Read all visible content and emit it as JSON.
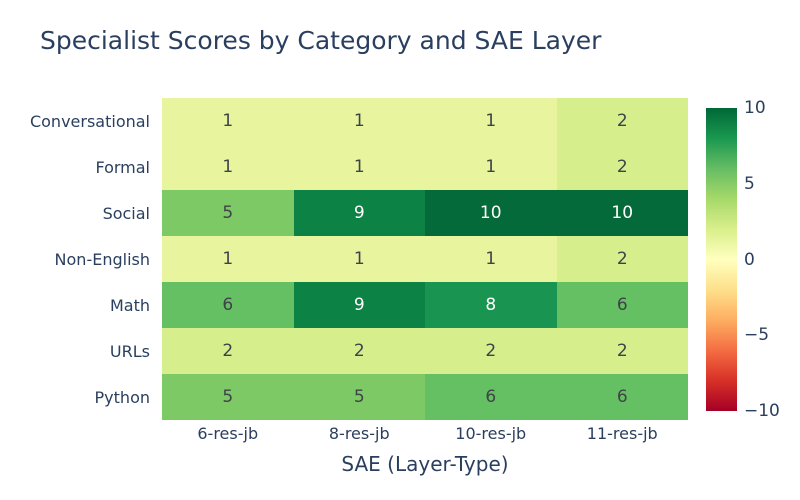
{
  "title": "Specialist Scores by Category and SAE Layer",
  "chart_data": {
    "type": "heatmap",
    "title": "Specialist Scores by Category and SAE Layer",
    "xlabel": "SAE (Layer-Type)",
    "ylabel": "",
    "x_categories": [
      "6-res-jb",
      "8-res-jb",
      "10-res-jb",
      "11-res-jb"
    ],
    "y_categories": [
      "Conversational",
      "Formal",
      "Social",
      "Non-English",
      "Math",
      "URLs",
      "Python"
    ],
    "values": [
      [
        1,
        1,
        1,
        2
      ],
      [
        1,
        1,
        1,
        2
      ],
      [
        5,
        9,
        10,
        10
      ],
      [
        1,
        1,
        1,
        2
      ],
      [
        6,
        9,
        8,
        6
      ],
      [
        2,
        2,
        2,
        2
      ],
      [
        5,
        5,
        6,
        6
      ]
    ],
    "zmin": -10,
    "zmax": 10,
    "colorscale_name": "RdYlGn",
    "colorbar_ticks": [
      {
        "label": "10",
        "value": 10
      },
      {
        "label": "5",
        "value": 5
      },
      {
        "label": "0",
        "value": 0
      },
      {
        "label": "−5",
        "value": -5
      },
      {
        "label": "−10",
        "value": -10
      }
    ],
    "legend_position": "right-colorbar",
    "grid": false
  },
  "style": {
    "label_color": "#2a3f5f",
    "cell_text_dark": "#3e4347",
    "cell_text_light": "#ffffff",
    "light_text_min_value": 8,
    "value_colors": {
      "1": "#e8f59e",
      "2": "#d7ee8c",
      "5": "#7dc965",
      "6": "#64c062",
      "8": "#199551",
      "9": "#0d8245",
      "10": "#046a39"
    },
    "colorbar_gradient_top_to_bottom": [
      "#006837",
      "#1a9850",
      "#66bd63",
      "#a6d96a",
      "#d9ef8b",
      "#ffffbf",
      "#fee08b",
      "#fdae61",
      "#f46d43",
      "#d73027",
      "#a50026"
    ]
  }
}
